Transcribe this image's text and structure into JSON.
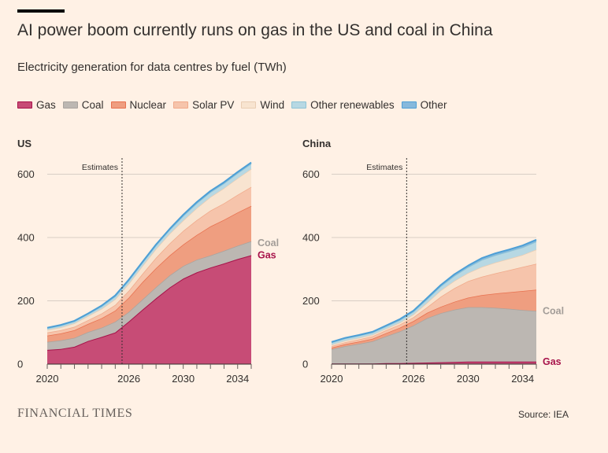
{
  "header": {
    "title": "AI power boom currently runs on gas in the US and coal in China",
    "subtitle": "Electricity generation for data centres by fuel (TWh)"
  },
  "legend": [
    {
      "key": "gas",
      "label": "Gas"
    },
    {
      "key": "coal",
      "label": "Coal"
    },
    {
      "key": "nuclear",
      "label": "Nuclear"
    },
    {
      "key": "solar",
      "label": "Solar PV"
    },
    {
      "key": "wind",
      "label": "Wind"
    },
    {
      "key": "other_renewables",
      "label": "Other renewables"
    },
    {
      "key": "other",
      "label": "Other"
    }
  ],
  "colors": {
    "gas": "#c74c76",
    "gas_line": "#a7134a",
    "coal": "#bcb7b2",
    "coal_line": "#a9a49f",
    "nuclear": "#ef9e80",
    "nuclear_line": "#e8714f",
    "solar": "#f6c4ab",
    "solar_line": "#f0a98a",
    "wind": "#f8e4d0",
    "wind_line": "#e9cdb3",
    "other_renewables": "#b7d8e3",
    "other_renewables_line": "#8cc3d6",
    "other": "#86b9dc",
    "other_line": "#4d9fd6",
    "grid": "#d8cec5",
    "axis_text": "#33302e"
  },
  "chart_data": [
    {
      "type": "area",
      "stacked": true,
      "title": "US",
      "x": [
        2020,
        2021,
        2022,
        2023,
        2024,
        2025,
        2026,
        2027,
        2028,
        2029,
        2030,
        2031,
        2032,
        2033,
        2034,
        2035
      ],
      "series": [
        {
          "name": "Gas",
          "key": "gas",
          "values": [
            45,
            48,
            55,
            73,
            86,
            100,
            135,
            172,
            208,
            242,
            270,
            290,
            305,
            318,
            332,
            344
          ]
        },
        {
          "name": "Coal",
          "key": "coal",
          "values": [
            25,
            27,
            28,
            28,
            29,
            34,
            30,
            32,
            35,
            38,
            40,
            40,
            38,
            40,
            42,
            44
          ]
        },
        {
          "name": "Nuclear",
          "key": "nuclear",
          "values": [
            20,
            22,
            24,
            26,
            30,
            35,
            45,
            55,
            60,
            63,
            68,
            78,
            92,
            98,
            105,
            112
          ]
        },
        {
          "name": "Solar PV",
          "key": "solar",
          "values": [
            10,
            10,
            11,
            12,
            15,
            18,
            22,
            26,
            33,
            38,
            43,
            47,
            50,
            52,
            56,
            60
          ]
        },
        {
          "name": "Wind",
          "key": "wind",
          "values": [
            8,
            9,
            11,
            13,
            15,
            18,
            22,
            25,
            28,
            31,
            33,
            38,
            43,
            48,
            52,
            57
          ]
        },
        {
          "name": "Other renewables",
          "key": "other_renewables",
          "values": [
            5,
            6,
            6,
            6,
            7,
            9,
            10,
            10,
            11,
            12,
            14,
            15,
            15,
            15,
            16,
            16
          ]
        },
        {
          "name": "Other",
          "key": "other",
          "values": [
            2,
            2,
            2,
            2,
            3,
            3,
            3,
            3,
            3,
            3,
            4,
            4,
            4,
            4,
            4,
            4
          ]
        }
      ],
      "xticks": [
        2020,
        2026,
        2030,
        2034
      ],
      "yticks": [
        0,
        200,
        400,
        600
      ],
      "xlim": [
        2020,
        2035
      ],
      "ylim": [
        0,
        650
      ],
      "estimate_start": 2025.5,
      "annotation": "Estimates",
      "end_labels": [
        {
          "key": "coal",
          "text": "Coal"
        },
        {
          "key": "gas",
          "text": "Gas"
        }
      ]
    },
    {
      "type": "area",
      "stacked": true,
      "title": "China",
      "x": [
        2020,
        2021,
        2022,
        2023,
        2024,
        2025,
        2026,
        2027,
        2028,
        2029,
        2030,
        2031,
        2032,
        2033,
        2034,
        2035
      ],
      "series": [
        {
          "name": "Gas",
          "key": "gas",
          "values": [
            2,
            2,
            2,
            2,
            3,
            3,
            4,
            5,
            6,
            7,
            8,
            8,
            8,
            8,
            8,
            8
          ]
        },
        {
          "name": "Coal",
          "key": "coal",
          "values": [
            45,
            55,
            62,
            70,
            85,
            100,
            118,
            140,
            155,
            165,
            172,
            172,
            170,
            167,
            163,
            160
          ]
        },
        {
          "name": "Nuclear",
          "key": "nuclear",
          "values": [
            5,
            6,
            7,
            8,
            10,
            12,
            14,
            17,
            20,
            25,
            30,
            38,
            45,
            52,
            60,
            67
          ]
        },
        {
          "name": "Solar PV",
          "key": "solar",
          "values": [
            5,
            6,
            7,
            8,
            9,
            10,
            12,
            18,
            32,
            43,
            52,
            58,
            64,
            70,
            76,
            82
          ]
        },
        {
          "name": "Wind",
          "key": "wind",
          "values": [
            4,
            5,
            5,
            5,
            5,
            6,
            9,
            14,
            20,
            23,
            26,
            31,
            34,
            36,
            38,
            45
          ]
        },
        {
          "name": "Other renewables",
          "key": "other_renewables",
          "values": [
            7,
            7,
            7,
            7,
            7,
            8,
            9,
            11,
            13,
            16,
            18,
            22,
            23,
            23,
            24,
            25
          ]
        },
        {
          "name": "Other",
          "key": "other",
          "values": [
            2,
            2,
            2,
            2,
            3,
            3,
            3,
            4,
            4,
            5,
            5,
            6,
            6,
            6,
            6,
            6
          ]
        }
      ],
      "xticks": [
        2020,
        2026,
        2030,
        2034
      ],
      "yticks": [
        0,
        200,
        400,
        600
      ],
      "xlim": [
        2020,
        2035
      ],
      "ylim": [
        0,
        650
      ],
      "estimate_start": 2025.5,
      "annotation": "Estimates",
      "end_labels": [
        {
          "key": "coal",
          "text": "Coal"
        },
        {
          "key": "gas",
          "text": "Gas"
        }
      ]
    }
  ],
  "footer": {
    "logo": "FINANCIAL TIMES",
    "source": "Source: IEA"
  }
}
